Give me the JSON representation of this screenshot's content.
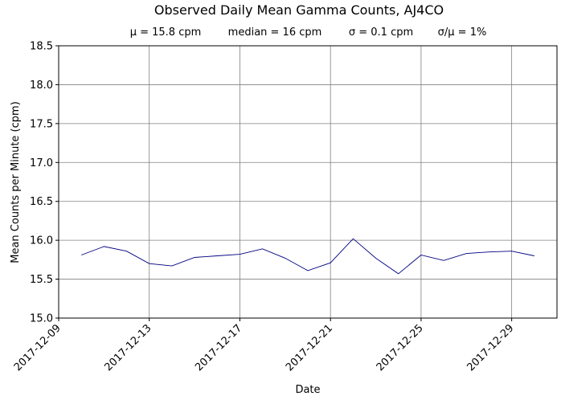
{
  "chart_data": {
    "type": "line",
    "title": "Observed Daily Mean Gamma Counts, AJ4CO",
    "stats": [
      "μ = 15.8 cpm",
      "median = 16 cpm",
      "σ = 0.1 cpm",
      "σ/μ = 1%"
    ],
    "xlabel": "Date",
    "ylabel": "Mean Counts per Minute (cpm)",
    "xlim": [
      "2017-12-09",
      "2017-12-31"
    ],
    "ylim": [
      15.0,
      18.5
    ],
    "x_ticks": [
      "2017-12-09",
      "2017-12-13",
      "2017-12-17",
      "2017-12-21",
      "2017-12-25",
      "2017-12-29"
    ],
    "y_ticks": [
      "15.0",
      "15.5",
      "16.0",
      "16.5",
      "17.0",
      "17.5",
      "18.0",
      "18.5"
    ],
    "grid": true,
    "line_color": "#000080",
    "grid_color": "#808080",
    "series": [
      {
        "x": [
          "2017-12-10",
          "2017-12-11",
          "2017-12-12",
          "2017-12-13",
          "2017-12-14",
          "2017-12-15",
          "2017-12-16",
          "2017-12-17",
          "2017-12-18",
          "2017-12-19",
          "2017-12-20",
          "2017-12-21",
          "2017-12-22",
          "2017-12-23",
          "2017-12-24",
          "2017-12-25",
          "2017-12-26",
          "2017-12-27",
          "2017-12-28",
          "2017-12-29",
          "2017-12-30"
        ],
        "y": [
          15.81,
          15.92,
          15.86,
          15.7,
          15.67,
          15.78,
          15.8,
          15.82,
          15.89,
          15.77,
          15.61,
          15.71,
          16.02,
          15.77,
          15.57,
          15.81,
          15.74,
          15.83,
          15.85,
          15.86,
          15.8
        ]
      }
    ]
  }
}
